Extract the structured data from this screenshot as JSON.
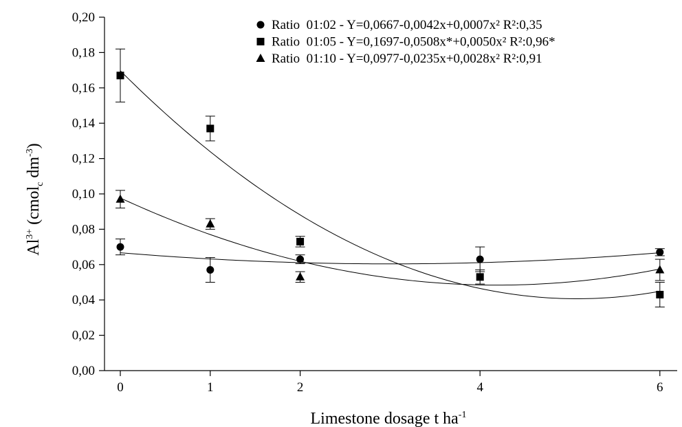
{
  "chart_data": {
    "type": "scatter",
    "xlabel": "Limestone dosage t ha",
    "xlabel_superscript": "-1",
    "ylabel": {
      "base": "Al",
      "sup": "3+",
      "paren_open": " (cmol",
      "sub": "c",
      "unit": " dm",
      "unit_sup": "-3",
      "paren_close": ")"
    },
    "x_ticks": [
      "0",
      "1",
      "2",
      "4",
      "6"
    ],
    "x_tick_values": [
      0,
      1,
      2,
      4,
      6
    ],
    "y_ticks": [
      "0,00",
      "0,02",
      "0,04",
      "0,06",
      "0,08",
      "0,10",
      "0,12",
      "0,14",
      "0,16",
      "0,18",
      "0,20"
    ],
    "y_tick_values": [
      0,
      0.02,
      0.04,
      0.06,
      0.08,
      0.1,
      0.12,
      0.14,
      0.16,
      0.18,
      0.2
    ],
    "ylim": [
      0,
      0.2
    ],
    "grid": false,
    "legend_position": "top-right",
    "series": [
      {
        "name": "Ratio  01:02 - Y=0,0667-0,0042x+0,0007x² R²:0,35",
        "marker": "circle",
        "x": [
          0,
          1,
          2,
          4,
          6
        ],
        "y": [
          0.07,
          0.057,
          0.063,
          0.063,
          0.067
        ],
        "err": [
          0.0045,
          0.007,
          0.0025,
          0.007,
          0.002
        ],
        "fit": [
          0.0667,
          -0.0042,
          0.0007
        ]
      },
      {
        "name": "Ratio  01:05 - Y=0,1697-0,0508x*+0,0050x² R²:0,96*",
        "marker": "square",
        "x": [
          0,
          1,
          2,
          4,
          6
        ],
        "y": [
          0.167,
          0.137,
          0.073,
          0.053,
          0.043
        ],
        "err": [
          0.015,
          0.007,
          0.003,
          0.004,
          0.007
        ],
        "fit": [
          0.1697,
          -0.0508,
          0.005
        ]
      },
      {
        "name": "Ratio  01:10 - Y=0,0977-0,0235x+0,0028x² R²:0,91",
        "marker": "triangle",
        "x": [
          0,
          1,
          2,
          4,
          6
        ],
        "y": [
          0.097,
          0.083,
          0.053,
          null,
          0.057
        ],
        "err": [
          0.005,
          0.003,
          0.003,
          null,
          0.006
        ],
        "fit": [
          0.0977,
          -0.0235,
          0.0028
        ]
      }
    ]
  }
}
